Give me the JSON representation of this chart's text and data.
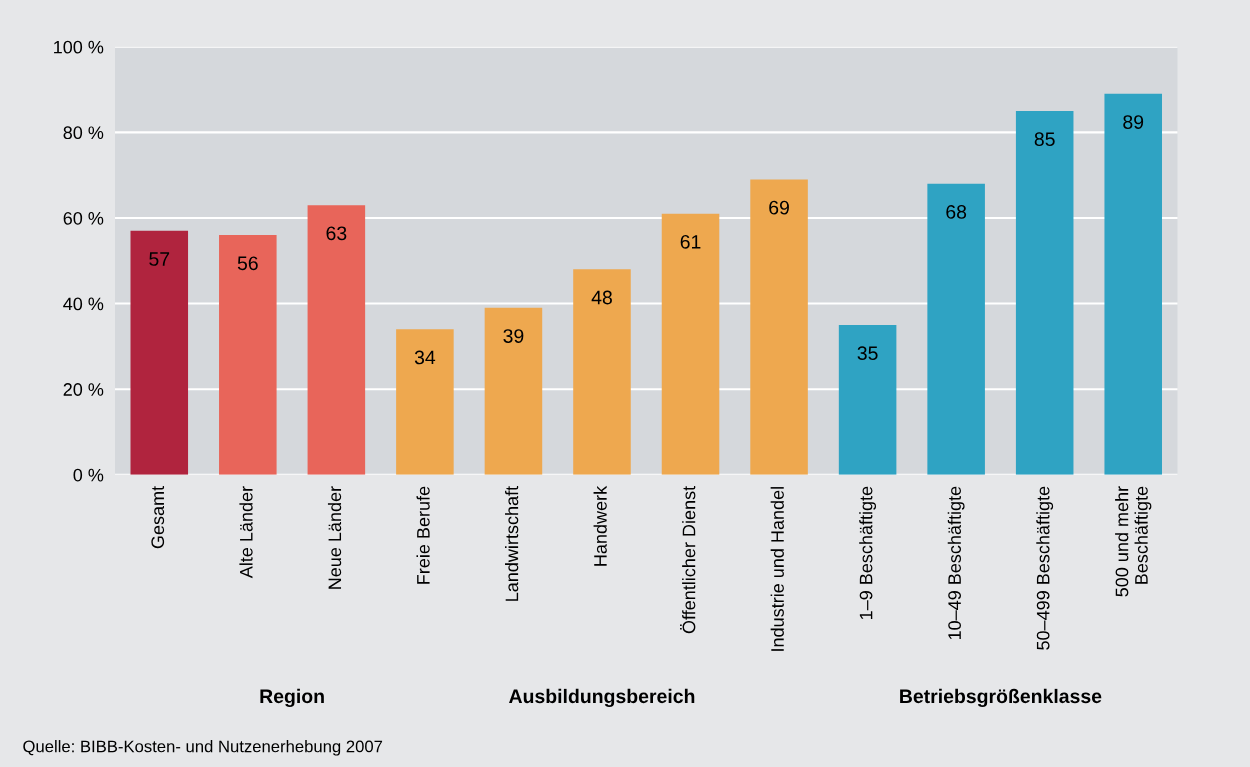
{
  "chart_data": {
    "type": "bar",
    "categories": [
      "Gesamt",
      "Alte Länder",
      "Neue Länder",
      "Freie Berufe",
      "Landwirtschaft",
      "Handwerk",
      "Öffentlicher Dienst",
      "Industrie und Handel",
      "1–9 Beschäftigte",
      "10–49 Beschäftigte",
      "50–499 Beschäftigte",
      "500 und mehr\nBeschäftigte"
    ],
    "values": [
      57,
      56,
      63,
      34,
      39,
      48,
      61,
      69,
      35,
      68,
      85,
      89
    ],
    "colors": [
      "#b0243e",
      "#e8655a",
      "#e8655a",
      "#eea84f",
      "#eea84f",
      "#eea84f",
      "#eea84f",
      "#eea84f",
      "#2fa3c3",
      "#2fa3c3",
      "#2fa3c3",
      "#2fa3c3"
    ],
    "ylim": [
      0,
      100
    ],
    "yticks": [
      {
        "value": 0,
        "label": "0 %"
      },
      {
        "value": 20,
        "label": "20 %"
      },
      {
        "value": 40,
        "label": "40 %"
      },
      {
        "value": 60,
        "label": "60 %"
      },
      {
        "value": 80,
        "label": "80 %"
      },
      {
        "value": 100,
        "label": "100 %"
      }
    ],
    "grid": "y",
    "legend": false,
    "data_labels": true,
    "annotations": [
      "Region",
      "Ausbildungsbereich",
      "Betriebsgrößenklasse",
      "Quelle: BIBB-Kosten- und Nutzenerhebung 2007"
    ]
  }
}
